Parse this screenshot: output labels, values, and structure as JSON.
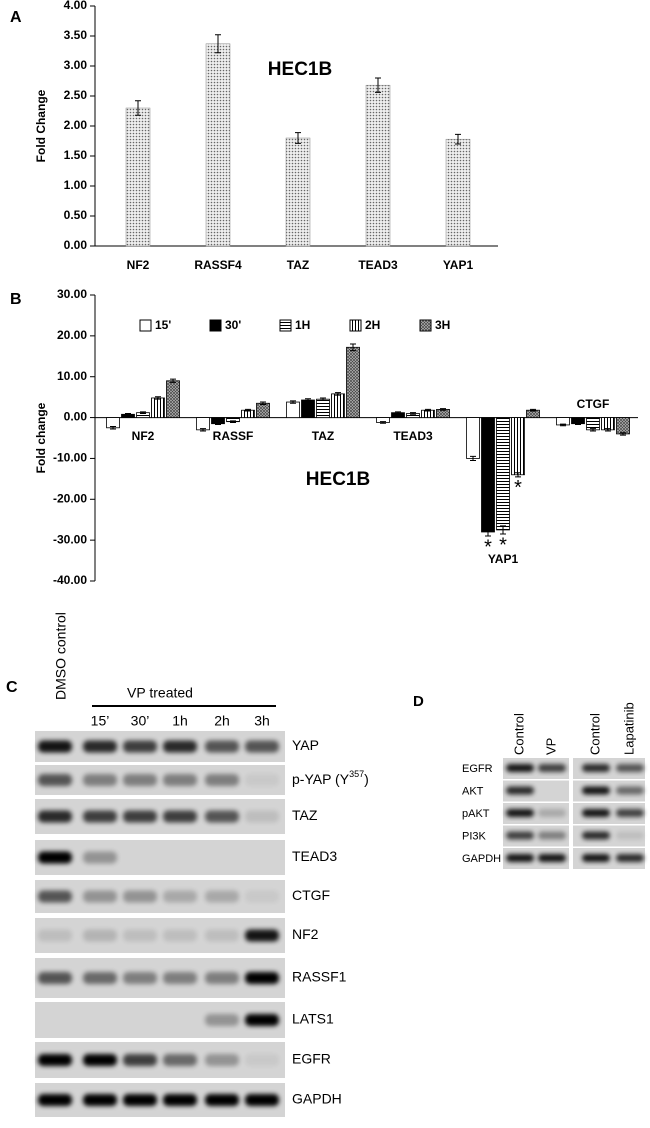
{
  "chart_data": [
    {
      "type": "bar",
      "panel_label": "A",
      "title": "HEC1B",
      "y_label": "Fold Change",
      "categories": [
        "NF2",
        "RASSF4",
        "TAZ",
        "TEAD3",
        "YAP1"
      ],
      "values": [
        2.3,
        3.37,
        1.8,
        2.68,
        1.78
      ],
      "errors": [
        0.12,
        0.15,
        0.09,
        0.12,
        0.08
      ],
      "color": "#d9d9d9",
      "pattern": "dots",
      "ylim": [
        0,
        4
      ],
      "yticks": [
        {
          "value": 0,
          "label": "0.00"
        },
        {
          "value": 0.5,
          "label": "0.50"
        },
        {
          "value": 1,
          "label": "1.00"
        },
        {
          "value": 1.5,
          "label": "1.50"
        },
        {
          "value": 2,
          "label": "2.00"
        },
        {
          "value": 2.5,
          "label": "2.50"
        },
        {
          "value": 3,
          "label": "3.00"
        },
        {
          "value": 3.5,
          "label": "3.50"
        },
        {
          "value": 4,
          "label": "4.00"
        }
      ]
    },
    {
      "type": "grouped_bar",
      "panel_label": "B",
      "title": "HEC1B",
      "y_label": "Fold change",
      "categories": [
        "NF2",
        "RASSF",
        "TAZ",
        "TEAD3",
        "YAP1",
        "CTGF"
      ],
      "series": [
        {
          "name": "15'",
          "color": "#ffffff",
          "pattern": "solid",
          "values": [
            -2.5,
            -3.0,
            3.8,
            -1.2,
            -10.0,
            -1.8
          ],
          "errors": [
            0.3,
            0.3,
            0.3,
            0.2,
            0.5,
            0.2
          ]
        },
        {
          "name": "30'",
          "color": "#000000",
          "pattern": "solid",
          "values": [
            0.8,
            -1.5,
            4.3,
            1.2,
            -28.0,
            -1.5
          ],
          "errors": [
            0.2,
            0.2,
            0.3,
            0.2,
            1.0,
            0.2
          ]
        },
        {
          "name": "1H",
          "color": "#ffffff",
          "pattern": "hlines",
          "values": [
            1.2,
            -1.0,
            4.5,
            1.0,
            -27.5,
            -3.0
          ],
          "errors": [
            0.2,
            0.2,
            0.3,
            0.2,
            1.0,
            0.3
          ]
        },
        {
          "name": "2H",
          "color": "#ffffff",
          "pattern": "vlines",
          "values": [
            4.8,
            1.8,
            5.8,
            1.8,
            -14.0,
            -3.0
          ],
          "errors": [
            0.3,
            0.2,
            0.3,
            0.2,
            0.5,
            0.3
          ]
        },
        {
          "name": "3H",
          "color": "#bfbfbf",
          "pattern": "cross",
          "values": [
            9.0,
            3.5,
            17.2,
            2.0,
            1.8,
            -4.0
          ],
          "errors": [
            0.4,
            0.3,
            0.8,
            0.2,
            0.2,
            0.3
          ]
        }
      ],
      "annotations": [
        "*",
        "*",
        "*"
      ],
      "ylim": [
        -40,
        30
      ],
      "yticks": [
        {
          "value": -40,
          "label": "-40.00"
        },
        {
          "value": -30,
          "label": "-30.00"
        },
        {
          "value": -20,
          "label": "-20.00"
        },
        {
          "value": -10,
          "label": "-10.00"
        },
        {
          "value": 0,
          "label": "0.00"
        },
        {
          "value": 10,
          "label": "10.00"
        },
        {
          "value": 20,
          "label": "20.00"
        },
        {
          "value": 30,
          "label": "30.00"
        }
      ]
    }
  ],
  "panel_c": {
    "panel_label": "C",
    "control_label": "DMSO control",
    "group_label": "VP treated",
    "lanes": [
      "15’",
      "30’",
      "1h",
      "2h",
      "3h"
    ],
    "rows": [
      "YAP",
      {
        "text": "p-YAP (Y",
        "sup": "357",
        "after": ")"
      },
      "TAZ",
      "TEAD3",
      "CTGF",
      "NF2",
      "RASSF1",
      "LATS1",
      "EGFR",
      "GAPDH"
    ]
  },
  "panel_d": {
    "panel_label": "D",
    "lanes": [
      "Control",
      "VP",
      "Control",
      "Lapatinib"
    ],
    "rows": [
      "EGFR",
      "AKT",
      "pAKT",
      "PI3K",
      "GAPDH"
    ]
  }
}
